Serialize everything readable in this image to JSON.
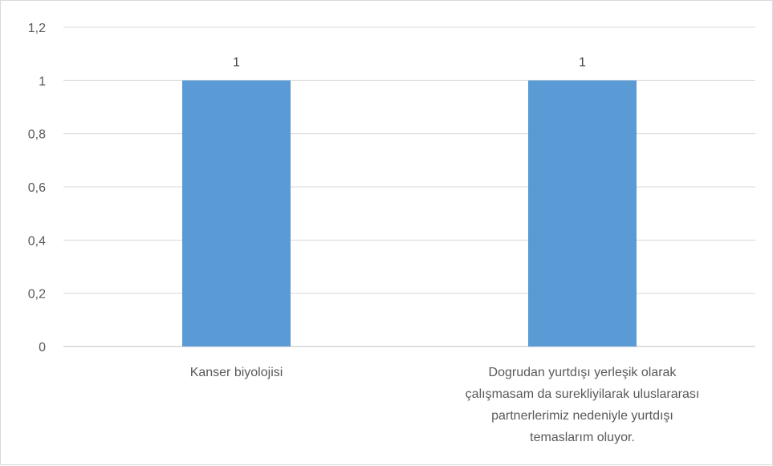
{
  "chart_data": {
    "type": "bar",
    "categories": [
      "Kanser biyolojisi",
      "Dogrudan yurtdışı yerleşik olarak çalışmasam da surekliyilarak uluslararası partnerlerimiz nedeniyle yurtdışı temaslarım oluyor."
    ],
    "category_label_lines": [
      [
        "Kanser biyolojisi"
      ],
      [
        "Dogrudan yurtdışı yerleşik olarak",
        "çalışmasam da surekliyilarak uluslararası",
        "partnerlerimiz nedeniyle yurtdışı",
        "temaslarım oluyor."
      ]
    ],
    "values": [
      1,
      1
    ],
    "data_labels": [
      "1",
      "1"
    ],
    "y_ticks": [
      "0",
      "0,2",
      "0,4",
      "0,6",
      "0,8",
      "1",
      "1,2"
    ],
    "ylim": [
      0,
      1.2
    ],
    "grid": true,
    "legend": "none",
    "colors": {
      "bar": "#5b9bd5",
      "grid": "#d9d9d9",
      "text": "#595959"
    }
  }
}
